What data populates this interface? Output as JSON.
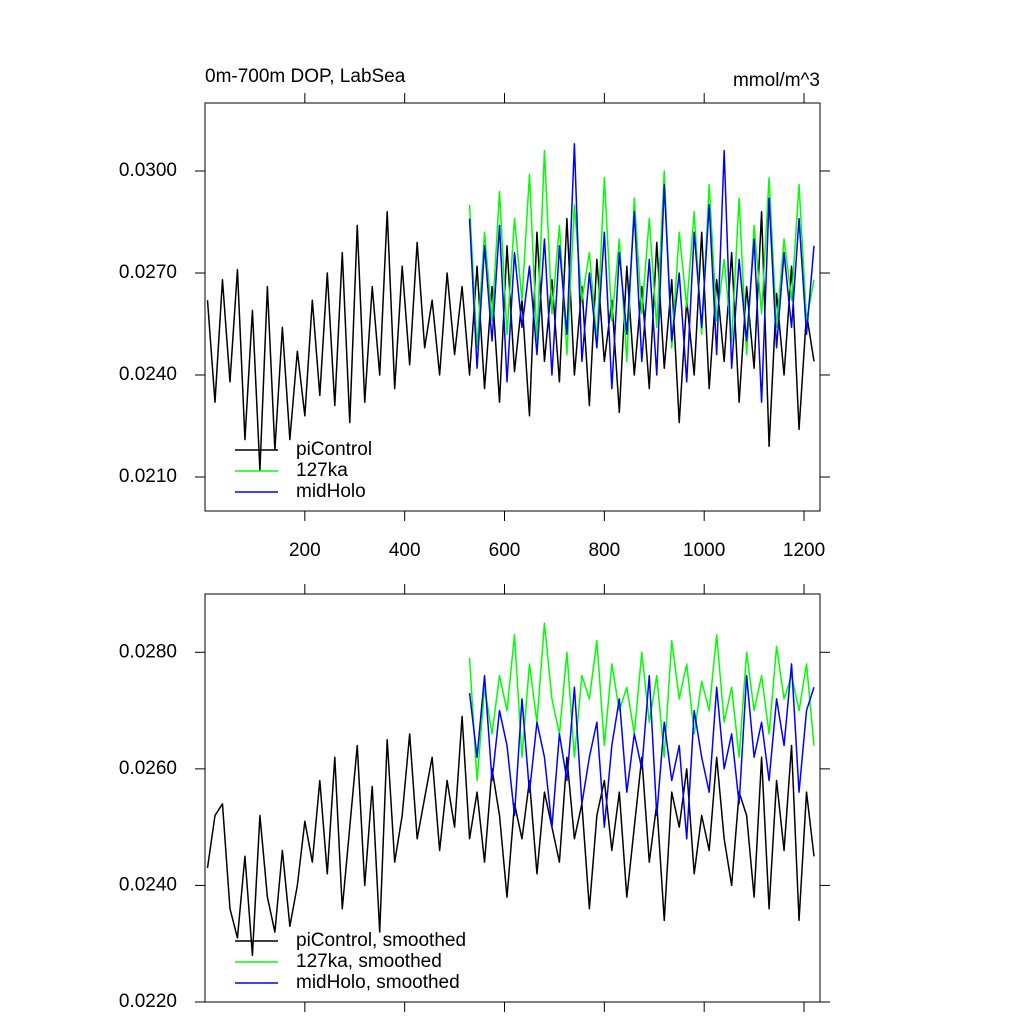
{
  "chart_data": [
    {
      "type": "line",
      "title": "0m-700m DOP, LabSea",
      "units": "mmol/m^3",
      "x": [
        5,
        20,
        35,
        50,
        65,
        80,
        95,
        110,
        125,
        140,
        155,
        170,
        185,
        200,
        215,
        230,
        245,
        260,
        275,
        290,
        305,
        320,
        335,
        350,
        365,
        380,
        395,
        410,
        425,
        440,
        455,
        470,
        485,
        500,
        515,
        530,
        545,
        560,
        575,
        590,
        605,
        620,
        635,
        650,
        665,
        680,
        695,
        710,
        725,
        740,
        755,
        770,
        785,
        800,
        815,
        830,
        845,
        860,
        875,
        890,
        905,
        920,
        935,
        950,
        965,
        980,
        995,
        1010,
        1025,
        1040,
        1055,
        1070,
        1085,
        1100,
        1115,
        1130,
        1145,
        1160,
        1175,
        1190,
        1205,
        1220
      ],
      "series": [
        {
          "name": "piControl",
          "color": "#000000",
          "values": [
            0.0262,
            0.0232,
            0.0268,
            0.0238,
            0.0271,
            0.0221,
            0.0259,
            0.0212,
            0.0266,
            0.0218,
            0.0254,
            0.0221,
            0.0247,
            0.0228,
            0.0262,
            0.0234,
            0.027,
            0.0231,
            0.0276,
            0.0226,
            0.0284,
            0.0232,
            0.0266,
            0.024,
            0.0288,
            0.0236,
            0.0272,
            0.0243,
            0.0279,
            0.0248,
            0.0262,
            0.024,
            0.027,
            0.0246,
            0.0266,
            0.024,
            0.0272,
            0.0236,
            0.0266,
            0.0232,
            0.0278,
            0.0241,
            0.0262,
            0.0228,
            0.0282,
            0.0244,
            0.0268,
            0.0238,
            0.0286,
            0.024,
            0.0266,
            0.0231,
            0.0274,
            0.0244,
            0.0262,
            0.0229,
            0.0272,
            0.024,
            0.0266,
            0.0236,
            0.0279,
            0.0242,
            0.0268,
            0.0226,
            0.0262,
            0.024,
            0.0282,
            0.0236,
            0.0268,
            0.0244,
            0.0276,
            0.0232,
            0.0266,
            0.0242,
            0.0288,
            0.0219,
            0.0264,
            0.024,
            0.0272,
            0.0224,
            0.0258,
            0.0244
          ]
        },
        {
          "name": "127ka",
          "color": "#00ff00",
          "values": [
            null,
            null,
            null,
            null,
            null,
            null,
            null,
            null,
            null,
            null,
            null,
            null,
            null,
            null,
            null,
            null,
            null,
            null,
            null,
            null,
            null,
            null,
            null,
            null,
            null,
            null,
            null,
            null,
            null,
            null,
            null,
            null,
            null,
            null,
            null,
            0.029,
            0.0248,
            0.0282,
            0.0256,
            0.0294,
            0.0252,
            0.0286,
            0.0262,
            0.0299,
            0.025,
            0.0306,
            0.0258,
            0.0284,
            0.0246,
            0.029,
            0.0262,
            0.0276,
            0.025,
            0.0298,
            0.0256,
            0.028,
            0.0244,
            0.0292,
            0.0258,
            0.0286,
            0.0254,
            0.03,
            0.0248,
            0.0282,
            0.026,
            0.0288,
            0.0252,
            0.0296,
            0.0256,
            0.0274,
            0.025,
            0.0292,
            0.0246,
            0.0284,
            0.0258,
            0.0298,
            0.0254,
            0.028,
            0.0262,
            0.0296,
            0.0256,
            0.0268
          ]
        },
        {
          "name": "midHolo",
          "color": "#0000ff",
          "values": [
            null,
            null,
            null,
            null,
            null,
            null,
            null,
            null,
            null,
            null,
            null,
            null,
            null,
            null,
            null,
            null,
            null,
            null,
            null,
            null,
            null,
            null,
            null,
            null,
            null,
            null,
            null,
            null,
            null,
            null,
            null,
            null,
            null,
            null,
            null,
            0.0286,
            0.0242,
            0.0278,
            0.025,
            0.0284,
            0.0238,
            0.0276,
            0.0254,
            0.0272,
            0.0246,
            0.028,
            0.024,
            0.0278,
            0.0252,
            0.0308,
            0.0244,
            0.027,
            0.0248,
            0.0282,
            0.0236,
            0.0276,
            0.0252,
            0.0288,
            0.0244,
            0.0274,
            0.024,
            0.0296,
            0.025,
            0.027,
            0.0238,
            0.0282,
            0.0254,
            0.029,
            0.0246,
            0.0306,
            0.0242,
            0.0274,
            0.025,
            0.028,
            0.0232,
            0.0292,
            0.0248,
            0.0276,
            0.0254,
            0.0286,
            0.0252,
            0.0278
          ]
        }
      ],
      "xlim": [
        0,
        1232
      ],
      "xticks": [
        200,
        400,
        600,
        800,
        1000,
        1200
      ],
      "xtick_labels": true,
      "ylim": [
        0.02,
        0.032
      ],
      "yticks": [
        {
          "value": 0.021,
          "label": "0.0210"
        },
        {
          "value": 0.024,
          "label": "0.0240"
        },
        {
          "value": 0.027,
          "label": "0.0270"
        },
        {
          "value": 0.03,
          "label": "0.0300"
        }
      ],
      "legend": "bottom-left"
    },
    {
      "type": "line",
      "x": [
        5,
        20,
        35,
        50,
        65,
        80,
        95,
        110,
        125,
        140,
        155,
        170,
        185,
        200,
        215,
        230,
        245,
        260,
        275,
        290,
        305,
        320,
        335,
        350,
        365,
        380,
        395,
        410,
        425,
        440,
        455,
        470,
        485,
        500,
        515,
        530,
        545,
        560,
        575,
        590,
        605,
        620,
        635,
        650,
        665,
        680,
        695,
        710,
        725,
        740,
        755,
        770,
        785,
        800,
        815,
        830,
        845,
        860,
        875,
        890,
        905,
        920,
        935,
        950,
        965,
        980,
        995,
        1010,
        1025,
        1040,
        1055,
        1070,
        1085,
        1100,
        1115,
        1130,
        1145,
        1160,
        1175,
        1190,
        1205,
        1220
      ],
      "series": [
        {
          "name": "piControl, smoothed",
          "color": "#000000",
          "values": [
            0.0243,
            0.0252,
            0.0254,
            0.0236,
            0.0231,
            0.0245,
            0.0228,
            0.0252,
            0.0238,
            0.0232,
            0.0246,
            0.0233,
            0.024,
            0.0251,
            0.0244,
            0.0258,
            0.0242,
            0.0262,
            0.0236,
            0.025,
            0.0264,
            0.024,
            0.0257,
            0.0232,
            0.0265,
            0.0244,
            0.0252,
            0.0266,
            0.0248,
            0.0255,
            0.0262,
            0.0246,
            0.0258,
            0.025,
            0.0269,
            0.0248,
            0.0256,
            0.0244,
            0.026,
            0.0252,
            0.0238,
            0.0254,
            0.0248,
            0.0258,
            0.0242,
            0.0256,
            0.025,
            0.0244,
            0.0262,
            0.0248,
            0.0254,
            0.0236,
            0.0252,
            0.0258,
            0.0246,
            0.0256,
            0.0238,
            0.025,
            0.0262,
            0.0244,
            0.0254,
            0.0234,
            0.0256,
            0.025,
            0.026,
            0.0242,
            0.0252,
            0.0246,
            0.0262,
            0.0248,
            0.024,
            0.0256,
            0.0252,
            0.0238,
            0.0262,
            0.0236,
            0.0258,
            0.0246,
            0.0264,
            0.0234,
            0.0256,
            0.0245
          ]
        },
        {
          "name": "127ka, smoothed",
          "color": "#00ff00",
          "values": [
            null,
            null,
            null,
            null,
            null,
            null,
            null,
            null,
            null,
            null,
            null,
            null,
            null,
            null,
            null,
            null,
            null,
            null,
            null,
            null,
            null,
            null,
            null,
            null,
            null,
            null,
            null,
            null,
            null,
            null,
            null,
            null,
            null,
            null,
            null,
            0.0279,
            0.0258,
            0.0274,
            0.0266,
            0.0276,
            0.027,
            0.0283,
            0.0262,
            0.0278,
            0.0268,
            0.0285,
            0.0272,
            0.0266,
            0.028,
            0.0262,
            0.0276,
            0.0272,
            0.0282,
            0.0264,
            0.0278,
            0.027,
            0.0274,
            0.0266,
            0.028,
            0.0268,
            0.0276,
            0.0262,
            0.0282,
            0.0272,
            0.0278,
            0.0266,
            0.0275,
            0.027,
            0.0283,
            0.0268,
            0.0274,
            0.0262,
            0.028,
            0.027,
            0.0276,
            0.0266,
            0.0281,
            0.0272,
            0.0276,
            0.027,
            0.0278,
            0.0264
          ]
        },
        {
          "name": "midHolo, smoothed",
          "color": "#0000ff",
          "values": [
            null,
            null,
            null,
            null,
            null,
            null,
            null,
            null,
            null,
            null,
            null,
            null,
            null,
            null,
            null,
            null,
            null,
            null,
            null,
            null,
            null,
            null,
            null,
            null,
            null,
            null,
            null,
            null,
            null,
            null,
            null,
            null,
            null,
            null,
            null,
            0.0273,
            0.0262,
            0.0276,
            0.0258,
            0.027,
            0.0264,
            0.0252,
            0.0272,
            0.0256,
            0.0268,
            0.0262,
            0.025,
            0.0266,
            0.0258,
            0.0274,
            0.0254,
            0.0262,
            0.0268,
            0.025,
            0.0264,
            0.0272,
            0.0256,
            0.0266,
            0.026,
            0.0276,
            0.0252,
            0.0268,
            0.0258,
            0.0264,
            0.0248,
            0.027,
            0.0262,
            0.0256,
            0.0274,
            0.026,
            0.0266,
            0.0254,
            0.0276,
            0.0262,
            0.0268,
            0.0258,
            0.0272,
            0.0264,
            0.0278,
            0.0256,
            0.027,
            0.0274
          ]
        }
      ],
      "xlim": [
        0,
        1232
      ],
      "xticks": [
        200,
        400,
        600,
        800,
        1000,
        1200
      ],
      "xtick_labels": false,
      "ylim": [
        0.022,
        0.029
      ],
      "yticks": [
        {
          "value": 0.022,
          "label": "0.0220"
        },
        {
          "value": 0.024,
          "label": "0.0240"
        },
        {
          "value": 0.026,
          "label": "0.0260"
        },
        {
          "value": 0.028,
          "label": "0.0280"
        }
      ],
      "legend": "bottom-left"
    }
  ]
}
